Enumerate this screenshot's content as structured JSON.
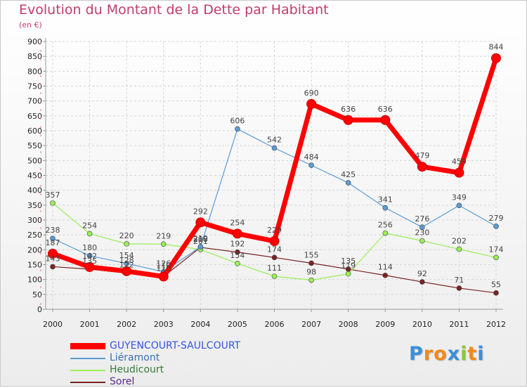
{
  "chart_data": {
    "type": "line",
    "title": "Evolution du Montant de la Dette par Habitant",
    "subtitle": "(en €)",
    "xlabel": "",
    "ylabel": "",
    "ylim": [
      0,
      900
    ],
    "yticks": [
      0,
      50,
      100,
      150,
      200,
      250,
      300,
      350,
      400,
      450,
      500,
      550,
      600,
      650,
      700,
      750,
      800,
      850,
      900
    ],
    "x": [
      "2000",
      "2001",
      "2002",
      "2003",
      "2004",
      "2005",
      "2006",
      "2007",
      "2008",
      "2009",
      "2010",
      "2011",
      "2012"
    ],
    "grid": true,
    "legend_position": "bottom-left",
    "series": [
      {
        "name": "GUYENCOURT-SAULCOURT",
        "color": "#ff0000",
        "values": [
          187,
          142,
          128,
          110,
          292,
          254,
          229,
          690,
          636,
          636,
          479,
          459,
          844
        ],
        "labels": [
          "187",
          "142",
          "128",
          "110",
          "292",
          "254",
          "229",
          "690",
          "636",
          "636",
          "479",
          "459",
          "844"
        ]
      },
      {
        "name": "Liéramont",
        "color": "#5b9bd5",
        "values": [
          238,
          180,
          154,
          126,
          210,
          606,
          542,
          484,
          425,
          341,
          276,
          349,
          279
        ],
        "labels": [
          "238",
          "180",
          "154",
          "126",
          "210",
          "606",
          "542",
          "484",
          "425",
          "341",
          "276",
          "349",
          "279"
        ]
      },
      {
        "name": "Heudicourt",
        "color": "#99ee55",
        "values": [
          357,
          254,
          220,
          219,
          201,
          154,
          111,
          98,
          119,
          256,
          230,
          202,
          174
        ],
        "labels": [
          "357",
          "254",
          "220",
          "219",
          "201",
          "154",
          "111",
          "98",
          "119",
          "256",
          "230",
          "202",
          "174"
        ]
      },
      {
        "name": "Sorel",
        "color": "#7a2222",
        "values": [
          143,
          135,
          122,
          110,
          208,
          192,
          174,
          155,
          135,
          114,
          92,
          71,
          55
        ],
        "labels": [
          "143",
          "135",
          "122",
          "110",
          "208",
          "192",
          "174",
          "155",
          "135",
          "114",
          "92",
          "71",
          "55"
        ]
      }
    ]
  },
  "logo": {
    "letters": [
      "P",
      "r",
      "o",
      "x",
      "i",
      "t",
      "i"
    ],
    "colors": [
      "#3a8fd9",
      "#f08a1c",
      "#f08a1c",
      "#3a8fd9",
      "#8cc63f",
      "#f08a1c",
      "#3a8fd9"
    ]
  }
}
